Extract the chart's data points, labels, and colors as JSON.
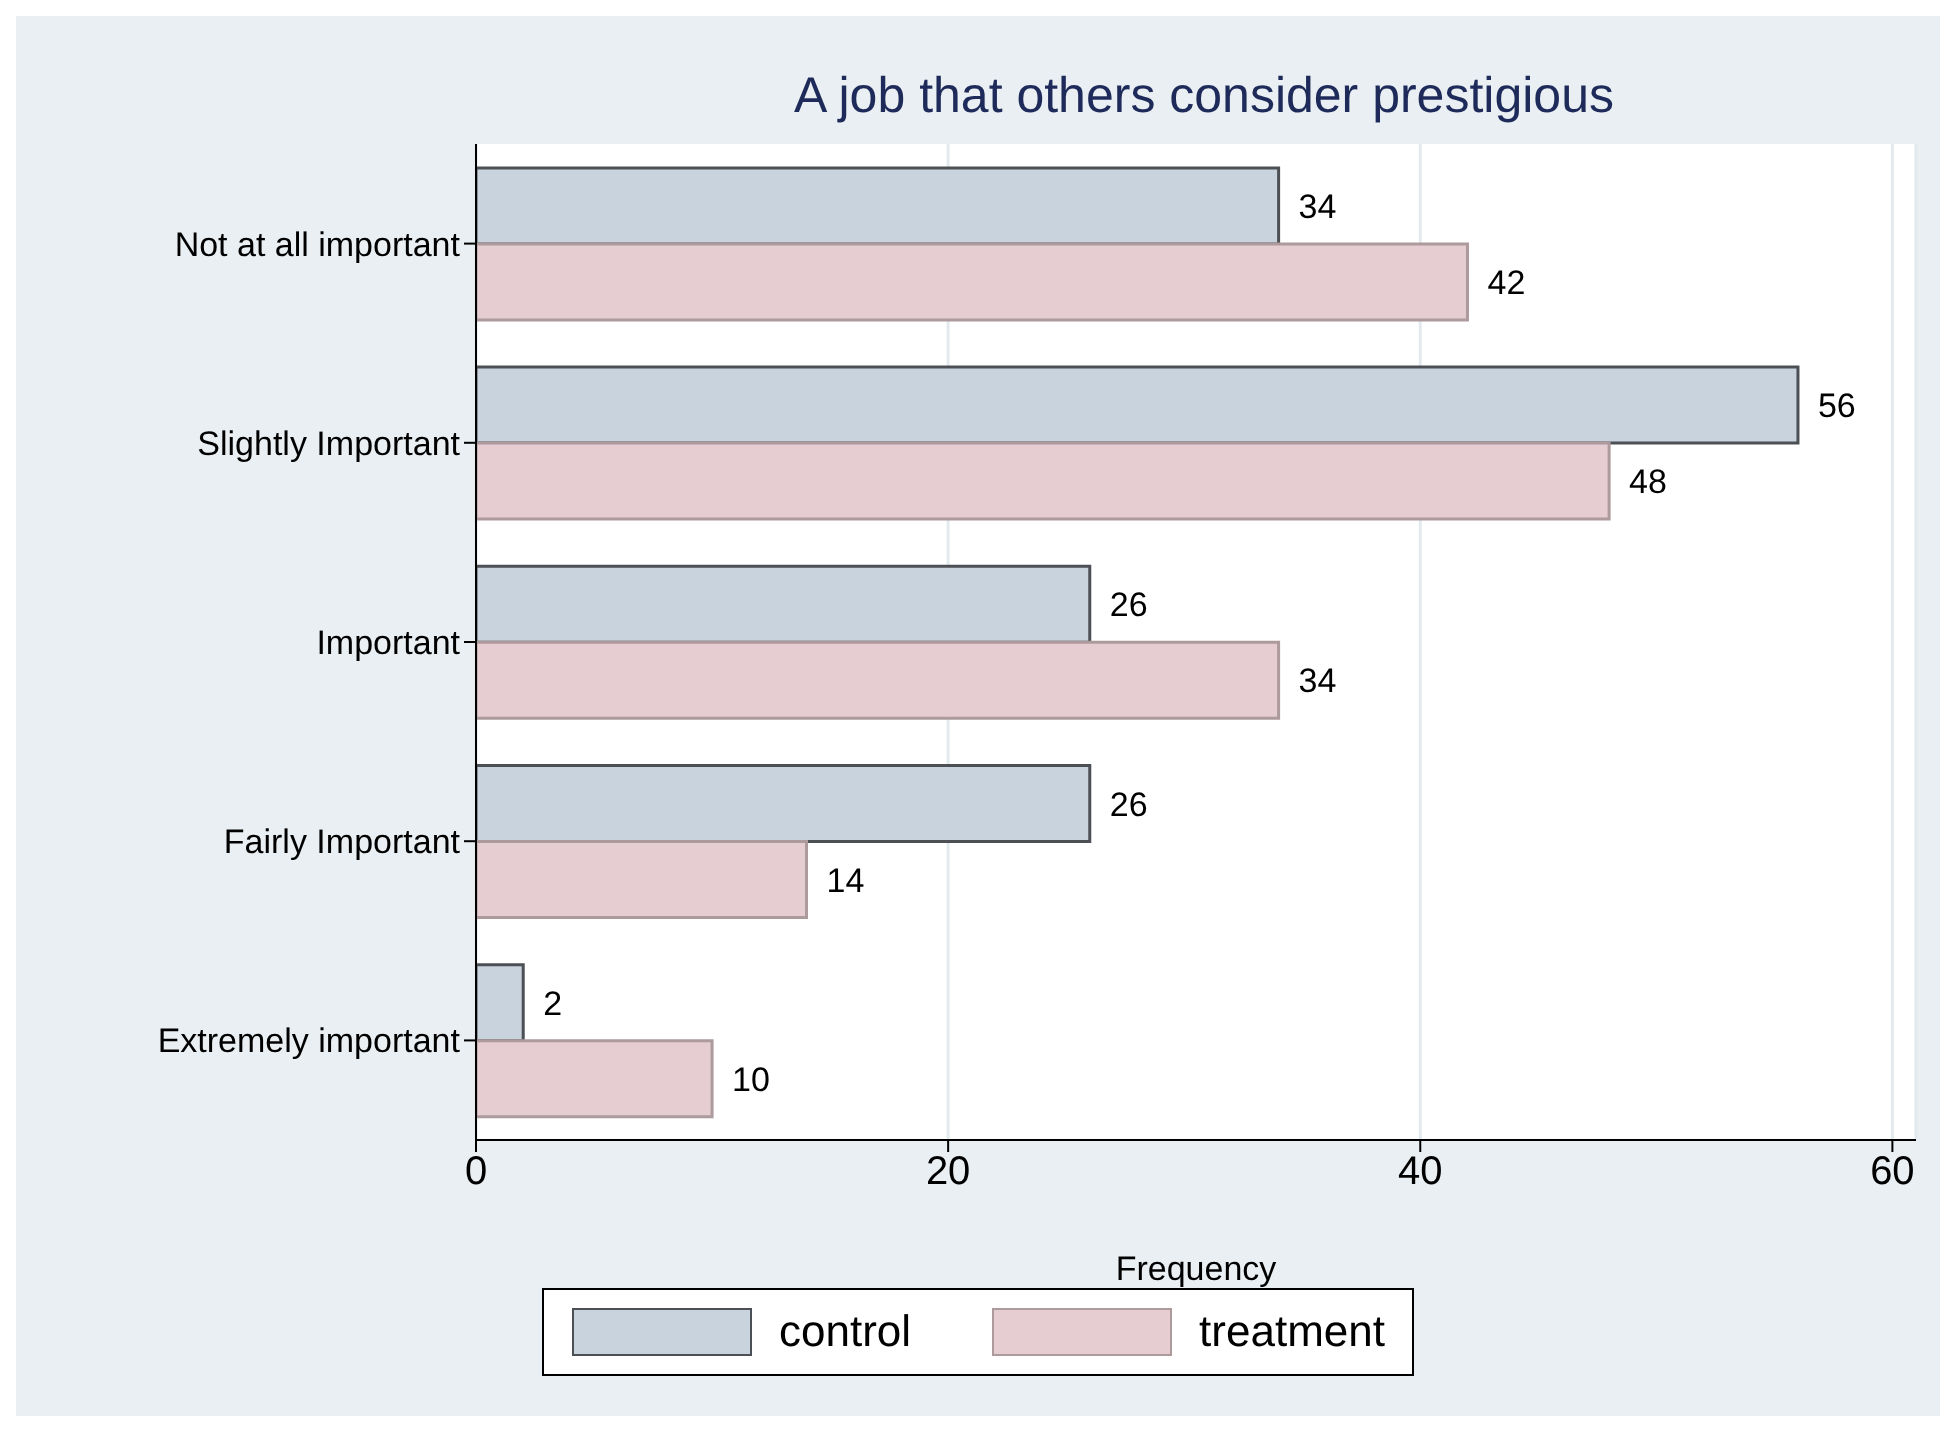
{
  "chart_data": {
    "type": "bar",
    "orientation": "horizontal",
    "title": "A job that others consider prestigious",
    "xlabel": "Frequency",
    "categories": [
      "Not at all important",
      "Slightly Important",
      "Important",
      "Fairly Important",
      "Extremely important"
    ],
    "series": [
      {
        "name": "control",
        "color": "#c9d3de",
        "values": [
          34,
          56,
          26,
          26,
          2
        ]
      },
      {
        "name": "treatment",
        "color": "#e6cdd1",
        "values": [
          42,
          48,
          34,
          14,
          10
        ]
      }
    ],
    "xlim": [
      0,
      61
    ],
    "xticks": [
      0,
      20,
      40,
      60
    ],
    "grid": "x",
    "legend": "bottom",
    "data_labels": true
  }
}
